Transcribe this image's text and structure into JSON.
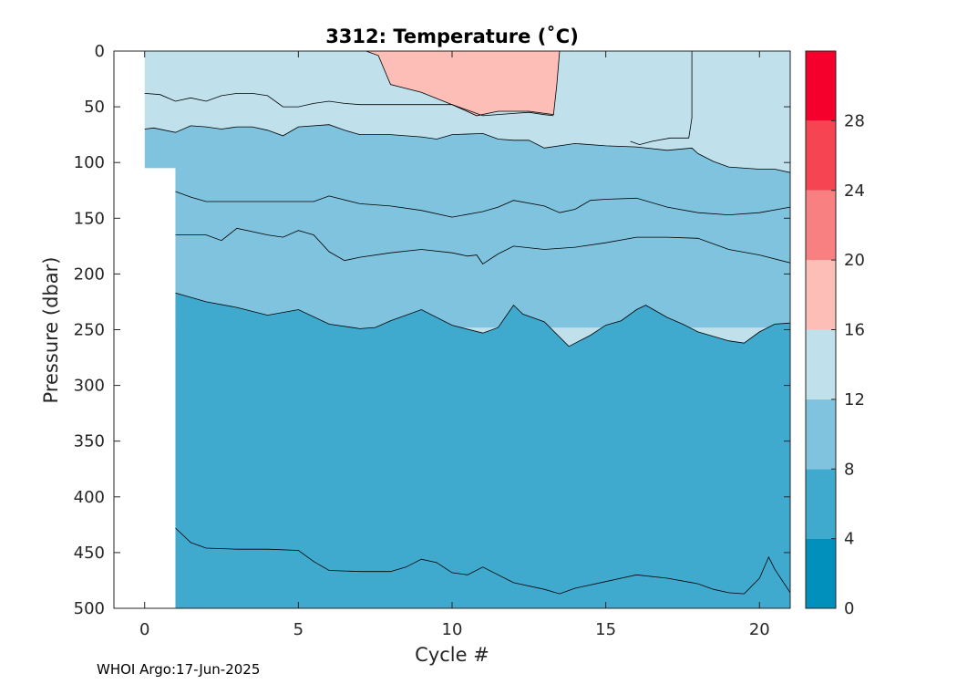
{
  "chart_data": {
    "type": "heatmap",
    "subtype": "filled-contour",
    "title": "3312:  Temperature (˚C)",
    "xlabel": "Cycle #",
    "ylabel": "Pressure (dbar)",
    "xlim": [
      -1,
      21
    ],
    "ylim": [
      500,
      0
    ],
    "y_reversed": true,
    "xticks": [
      0,
      5,
      10,
      15,
      20
    ],
    "yticks": [
      0,
      50,
      100,
      150,
      200,
      250,
      300,
      350,
      400,
      450,
      500
    ],
    "grid": false,
    "colorbar": {
      "range": [
        0,
        32
      ],
      "tick_labels": [
        0,
        4,
        8,
        12,
        16,
        20,
        24,
        28
      ],
      "levels": [
        {
          "min": 0,
          "max": 4,
          "color": "#0090bb"
        },
        {
          "min": 4,
          "max": 8,
          "color": "#40a9ce"
        },
        {
          "min": 8,
          "max": 12,
          "color": "#80c3de"
        },
        {
          "min": 12,
          "max": 16,
          "color": "#c0e1ec"
        },
        {
          "min": 16,
          "max": 20,
          "color": "#fcbeb7"
        },
        {
          "min": 20,
          "max": 24,
          "color": "#f98080"
        },
        {
          "min": 24,
          "max": 28,
          "color": "#f64452"
        },
        {
          "min": 28,
          "max": 32,
          "color": "#f5002c"
        }
      ]
    },
    "background_fill_color": "#c0e1ec",
    "no_data_region": {
      "x": [
        -1,
        1
      ],
      "pressure_below": 105
    },
    "regions": [
      {
        "color": "#fcbeb7",
        "label": "16-20",
        "points": [
          [
            7.2,
            0
          ],
          [
            13.5,
            0
          ],
          [
            13.4,
            32
          ],
          [
            13.3,
            57
          ],
          [
            12.5,
            54
          ],
          [
            11.5,
            54
          ],
          [
            10.8,
            58
          ],
          [
            10,
            48
          ],
          [
            9,
            37
          ],
          [
            8,
            30
          ],
          [
            7.6,
            4
          ]
        ]
      },
      {
        "color": "#80c3de",
        "label": "8-12",
        "points": [
          [
            0,
            70
          ],
          [
            0.3,
            69
          ],
          [
            1,
            73
          ],
          [
            1.5,
            67
          ],
          [
            2,
            68
          ],
          [
            2.5,
            70
          ],
          [
            3,
            68
          ],
          [
            3.5,
            68
          ],
          [
            4,
            71
          ],
          [
            4.5,
            76
          ],
          [
            5,
            68
          ],
          [
            6,
            66
          ],
          [
            6.5,
            71
          ],
          [
            7,
            75
          ],
          [
            8,
            75
          ],
          [
            9,
            77
          ],
          [
            9.5,
            79
          ],
          [
            10,
            75
          ],
          [
            11,
            74
          ],
          [
            11.5,
            79
          ],
          [
            12,
            80
          ],
          [
            12.5,
            80
          ],
          [
            13,
            87
          ],
          [
            14,
            83
          ],
          [
            15,
            85
          ],
          [
            16,
            86
          ],
          [
            17,
            89
          ],
          [
            17.8,
            87
          ],
          [
            18,
            92
          ],
          [
            18.5,
            99
          ],
          [
            19,
            104
          ],
          [
            20,
            106
          ],
          [
            20.5,
            106
          ],
          [
            21,
            109
          ],
          [
            21,
            248
          ],
          [
            0,
            248
          ]
        ]
      },
      {
        "color": "#40a9ce",
        "label": "4-8",
        "points": [
          [
            1,
            217
          ],
          [
            2,
            225
          ],
          [
            3,
            230
          ],
          [
            4,
            237
          ],
          [
            5,
            232
          ],
          [
            6,
            245
          ],
          [
            7,
            249
          ],
          [
            7.5,
            248
          ],
          [
            8,
            242
          ],
          [
            9,
            232
          ],
          [
            10,
            246
          ],
          [
            11,
            253
          ],
          [
            11.5,
            248
          ],
          [
            12,
            228
          ],
          [
            12.3,
            236
          ],
          [
            13,
            243
          ],
          [
            13.8,
            265
          ],
          [
            14.5,
            255
          ],
          [
            15,
            246
          ],
          [
            15.5,
            242
          ],
          [
            16,
            232
          ],
          [
            16.3,
            228
          ],
          [
            17,
            239
          ],
          [
            17.5,
            245
          ],
          [
            18,
            252
          ],
          [
            19,
            260
          ],
          [
            19.5,
            262
          ],
          [
            20,
            252
          ],
          [
            20.5,
            245
          ],
          [
            21,
            244
          ],
          [
            21,
            500
          ],
          [
            1,
            500
          ]
        ]
      }
    ],
    "contours": [
      {
        "level": 12,
        "points": [
          [
            0,
            38
          ],
          [
            0.5,
            39
          ],
          [
            1,
            45
          ],
          [
            1.5,
            42
          ],
          [
            2,
            45
          ],
          [
            2.5,
            40
          ],
          [
            3,
            38
          ],
          [
            3.5,
            38
          ],
          [
            4,
            40
          ],
          [
            4.5,
            50
          ],
          [
            5,
            50
          ],
          [
            5.5,
            47
          ],
          [
            6,
            45
          ],
          [
            6.5,
            47
          ],
          [
            7,
            48
          ],
          [
            8,
            48
          ],
          [
            9,
            48
          ],
          [
            10,
            48
          ],
          [
            10.5,
            53
          ],
          [
            11,
            58
          ],
          [
            12,
            56
          ],
          [
            12.5,
            55
          ],
          [
            13,
            57
          ],
          [
            13.3,
            58
          ]
        ]
      },
      {
        "level": 12,
        "points": [
          [
            15.8,
            81
          ],
          [
            16.1,
            84
          ],
          [
            16.5,
            81
          ],
          [
            17.1,
            78
          ],
          [
            17.7,
            78
          ],
          [
            17.8,
            60
          ],
          [
            17.8,
            0
          ]
        ]
      },
      {
        "level": 16,
        "points": [
          [
            7.2,
            0
          ],
          [
            7.6,
            4
          ],
          [
            8,
            30
          ],
          [
            9,
            37
          ],
          [
            10,
            48
          ],
          [
            10.8,
            58
          ],
          [
            11.5,
            54
          ],
          [
            12.5,
            54
          ],
          [
            13.3,
            57
          ],
          [
            13.4,
            32
          ],
          [
            13.5,
            0
          ]
        ]
      },
      {
        "level": 8,
        "points": [
          [
            0,
            70
          ],
          [
            0.3,
            69
          ],
          [
            1,
            73
          ],
          [
            1.5,
            67
          ],
          [
            2,
            68
          ],
          [
            2.5,
            70
          ],
          [
            3,
            68
          ],
          [
            3.5,
            68
          ],
          [
            4,
            71
          ],
          [
            4.5,
            76
          ],
          [
            5,
            68
          ],
          [
            6,
            66
          ],
          [
            6.5,
            71
          ],
          [
            7,
            75
          ],
          [
            8,
            75
          ],
          [
            9,
            77
          ],
          [
            9.5,
            79
          ],
          [
            10,
            75
          ],
          [
            11,
            74
          ],
          [
            11.5,
            79
          ],
          [
            12,
            80
          ],
          [
            12.5,
            80
          ],
          [
            13,
            87
          ],
          [
            14,
            83
          ],
          [
            15,
            85
          ],
          [
            16,
            86
          ],
          [
            17,
            89
          ],
          [
            17.8,
            87
          ],
          [
            18,
            92
          ],
          [
            18.5,
            99
          ],
          [
            19,
            104
          ],
          [
            20,
            106
          ],
          [
            20.5,
            106
          ],
          [
            21,
            109
          ]
        ]
      },
      {
        "level": 10,
        "points": [
          [
            1,
            126
          ],
          [
            1.5,
            131
          ],
          [
            2,
            135
          ],
          [
            3,
            135
          ],
          [
            4,
            135
          ],
          [
            5,
            135
          ],
          [
            5.5,
            135
          ],
          [
            6,
            130
          ],
          [
            7,
            137
          ],
          [
            8,
            139
          ],
          [
            9,
            143
          ],
          [
            10,
            149
          ],
          [
            11,
            144
          ],
          [
            11.5,
            140
          ],
          [
            12,
            134
          ],
          [
            13,
            139
          ],
          [
            13.5,
            145
          ],
          [
            14,
            142
          ],
          [
            14.5,
            134
          ],
          [
            15,
            133
          ],
          [
            16,
            132
          ],
          [
            17,
            140
          ],
          [
            18,
            145
          ],
          [
            19,
            147
          ],
          [
            20,
            145
          ],
          [
            21,
            140
          ]
        ]
      },
      {
        "level": 10,
        "points": [
          [
            1,
            165
          ],
          [
            2,
            165
          ],
          [
            2.5,
            170
          ],
          [
            3,
            159
          ],
          [
            4,
            165
          ],
          [
            4.5,
            167
          ],
          [
            5,
            161
          ],
          [
            5.5,
            165
          ],
          [
            6,
            180
          ],
          [
            6.5,
            188
          ],
          [
            7,
            185
          ],
          [
            8,
            181
          ],
          [
            9,
            178
          ],
          [
            10,
            181
          ],
          [
            10.5,
            184
          ],
          [
            10.8,
            183
          ],
          [
            11,
            191
          ],
          [
            11.5,
            182
          ],
          [
            12,
            175
          ],
          [
            13,
            178
          ],
          [
            14,
            176
          ],
          [
            15,
            172
          ],
          [
            16,
            167
          ],
          [
            17,
            167
          ],
          [
            18,
            168
          ],
          [
            19,
            178
          ],
          [
            20,
            183
          ],
          [
            21,
            190
          ]
        ]
      },
      {
        "level": 8,
        "points": [
          [
            1,
            217
          ],
          [
            2,
            225
          ],
          [
            3,
            230
          ],
          [
            4,
            237
          ],
          [
            5,
            232
          ],
          [
            6,
            245
          ],
          [
            7,
            249
          ],
          [
            7.5,
            248
          ],
          [
            8,
            242
          ],
          [
            9,
            232
          ],
          [
            10,
            246
          ],
          [
            11,
            253
          ],
          [
            11.5,
            248
          ],
          [
            12,
            228
          ],
          [
            12.3,
            236
          ],
          [
            13,
            243
          ],
          [
            13.8,
            265
          ],
          [
            14.5,
            255
          ],
          [
            15,
            246
          ],
          [
            15.5,
            242
          ],
          [
            16,
            232
          ],
          [
            16.3,
            228
          ],
          [
            17,
            239
          ],
          [
            17.5,
            245
          ],
          [
            18,
            252
          ],
          [
            19,
            260
          ],
          [
            19.5,
            262
          ],
          [
            20,
            252
          ],
          [
            20.5,
            245
          ],
          [
            21,
            244
          ]
        ]
      },
      {
        "level": 6,
        "points": [
          [
            1,
            428
          ],
          [
            1.5,
            441
          ],
          [
            2,
            446
          ],
          [
            3,
            447
          ],
          [
            4,
            447
          ],
          [
            5,
            448
          ],
          [
            5.5,
            458
          ],
          [
            6,
            466
          ],
          [
            7,
            467
          ],
          [
            8,
            467
          ],
          [
            8.5,
            463
          ],
          [
            9,
            456
          ],
          [
            9.5,
            459
          ],
          [
            10,
            468
          ],
          [
            10.5,
            470
          ],
          [
            11,
            463
          ],
          [
            12,
            477
          ],
          [
            13,
            483
          ],
          [
            13.5,
            487
          ],
          [
            14,
            482
          ],
          [
            15,
            476
          ],
          [
            16,
            470
          ],
          [
            17,
            473
          ],
          [
            18,
            478
          ],
          [
            18.5,
            483
          ],
          [
            19,
            486
          ],
          [
            19.5,
            487
          ],
          [
            20,
            473
          ],
          [
            20.3,
            454
          ],
          [
            20.5,
            465
          ],
          [
            21,
            486
          ]
        ]
      }
    ]
  },
  "footer": "WHOI Argo:17-Jun-2025"
}
